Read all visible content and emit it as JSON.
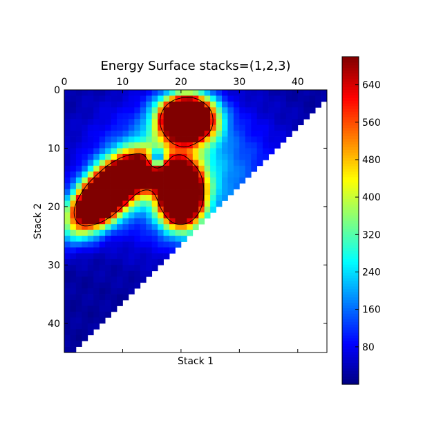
{
  "chart_data": {
    "type": "heatmap",
    "title": "Energy Surface stacks=(1,2,3)",
    "xlabel": "Stack 1",
    "ylabel": "Stack 2",
    "xlim": [
      0,
      45
    ],
    "ylim": [
      45,
      0
    ],
    "x_axis_position": "top",
    "grid": false,
    "x_ticks": [
      0,
      10,
      20,
      30,
      40
    ],
    "y_ticks": [
      0,
      10,
      20,
      30,
      40
    ],
    "colorbar": {
      "colormap": "jet",
      "vmin": 0,
      "vmax": 700,
      "ticks": [
        80,
        160,
        240,
        320,
        400,
        480,
        560,
        640
      ],
      "position": "right"
    },
    "contour_level": 600,
    "mask": "cells with x greater than (45 - y) are empty (white)",
    "peaks": [
      {
        "x": 21,
        "y": 5,
        "value": 700
      },
      {
        "x": 20,
        "y": 18,
        "value": 700
      },
      {
        "x": 7,
        "y": 18,
        "value": 700
      }
    ],
    "background_value": 20
  }
}
